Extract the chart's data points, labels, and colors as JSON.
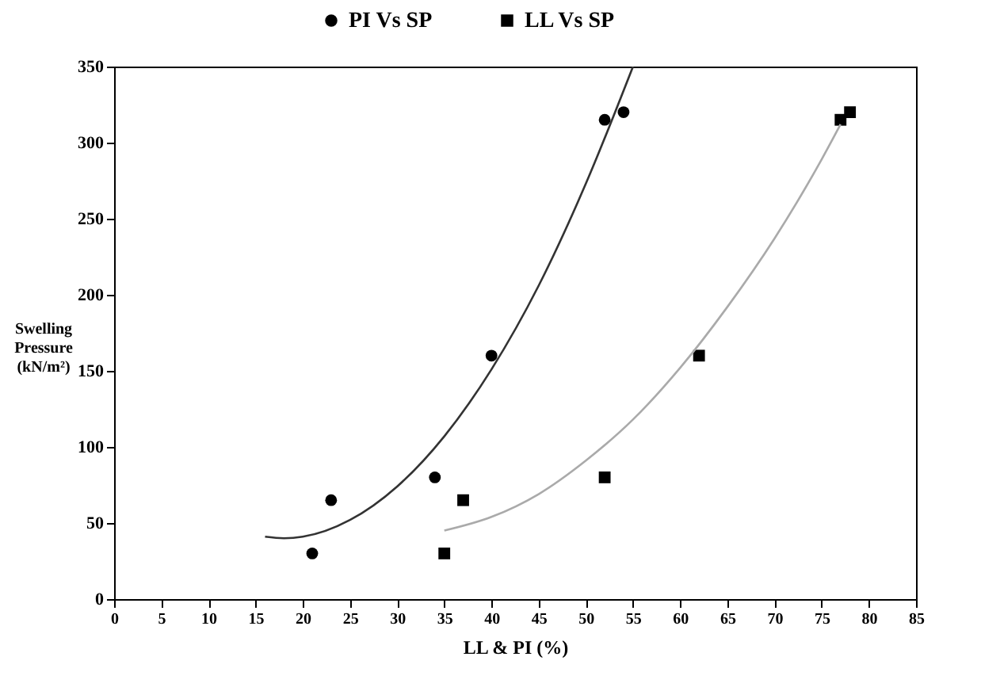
{
  "chart_data": {
    "type": "scatter",
    "xlabel": "LL & PI (%)",
    "ylabel": "Swelling Pressure (kN/m²)",
    "xlim": [
      0,
      85
    ],
    "ylim": [
      0,
      350
    ],
    "xticks": [
      0,
      5,
      10,
      15,
      20,
      25,
      30,
      35,
      40,
      45,
      50,
      55,
      60,
      65,
      70,
      75,
      80,
      85
    ],
    "yticks": [
      0,
      50,
      100,
      150,
      200,
      250,
      300,
      350
    ],
    "grid": false,
    "legend": "top",
    "series": [
      {
        "name": "PI Vs SP",
        "color": "#000000",
        "marker": "circle",
        "x": [
          21,
          23,
          34,
          40,
          52,
          54
        ],
        "values": [
          30,
          65,
          80,
          160,
          315,
          320
        ]
      },
      {
        "name": "LL Vs SP",
        "color": "#000000",
        "marker": "square",
        "x": [
          35,
          37,
          52,
          62,
          77,
          78
        ],
        "values": [
          30,
          65,
          80,
          160,
          315,
          320
        ]
      },
      {
        "type": "line",
        "color": "#333333",
        "x": [
          16,
          18,
          20,
          25,
          30,
          35,
          40,
          45,
          50,
          55
        ],
        "values": [
          41,
          40,
          41,
          52,
          74,
          107,
          151,
          206,
          273,
          350
        ]
      },
      {
        "type": "line",
        "color": "#aaaaaa",
        "x": [
          35,
          40,
          45,
          50,
          55,
          60,
          65,
          70,
          75,
          77
        ],
        "values": [
          45,
          54,
          69,
          91,
          118,
          152,
          192,
          237,
          289,
          312
        ]
      }
    ]
  }
}
